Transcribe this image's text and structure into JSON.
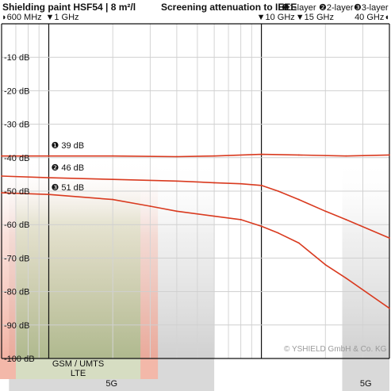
{
  "chart_data": {
    "type": "line",
    "title": "Shielding paint HSF54 | 8 m²/l",
    "subtitle": "Screening attenuation to IEEE",
    "legend": [
      {
        "marker": "❶",
        "label": "1-layer"
      },
      {
        "marker": "❷",
        "label": "2-layer"
      },
      {
        "marker": "❸",
        "label": "3-layer"
      }
    ],
    "x_tick_labels": [
      {
        "label": "◗600 MHz",
        "freq_ghz": 0.6
      },
      {
        "label": "▼1 GHz",
        "freq_ghz": 1
      },
      {
        "label": "▼10 GHz",
        "freq_ghz": 10
      },
      {
        "label": "▼15 GHz",
        "freq_ghz": 15
      },
      {
        "label": "40 GHz◖",
        "freq_ghz": 40
      }
    ],
    "x_scale": "log",
    "xlim_ghz": [
      0.6,
      40
    ],
    "ylim": [
      -100,
      0
    ],
    "y_ticks": [
      {
        "value": -10,
        "label": "-10 dB"
      },
      {
        "value": -20,
        "label": "-20 dB"
      },
      {
        "value": -30,
        "label": "-30 dB"
      },
      {
        "value": -40,
        "label": "-40 dB"
      },
      {
        "value": -50,
        "label": "-50 dB"
      },
      {
        "value": -60,
        "label": "-60 dB"
      },
      {
        "value": -70,
        "label": "-70 dB"
      },
      {
        "value": -80,
        "label": "-80 dB"
      },
      {
        "value": -90,
        "label": "-90 dB"
      },
      {
        "value": -100,
        "label": "-100 dB"
      }
    ],
    "series": [
      {
        "name": "1-layer",
        "color": "#d93a1f",
        "x_ghz": [
          0.6,
          1,
          2,
          4,
          6,
          10,
          15,
          25,
          40
        ],
        "y": [
          -39.5,
          -39.5,
          -39.5,
          -39.7,
          -39.5,
          -39.0,
          -39.2,
          -39.5,
          -39.2
        ]
      },
      {
        "name": "2-layer",
        "color": "#d93a1f",
        "x_ghz": [
          0.6,
          1,
          2,
          4,
          6,
          8,
          10,
          12,
          15,
          20,
          25,
          40
        ],
        "y": [
          -45.5,
          -46,
          -46.5,
          -47,
          -47.5,
          -47.8,
          -48.3,
          -50,
          -52.5,
          -56,
          -58.5,
          -64
        ]
      },
      {
        "name": "3-layer",
        "color": "#d93a1f",
        "x_ghz": [
          0.6,
          1,
          2,
          3,
          4,
          6,
          8,
          10,
          12,
          15,
          20,
          25,
          40
        ],
        "y": [
          -50.5,
          -51,
          -52.5,
          -54.5,
          -56,
          -57.5,
          -58.5,
          -60.5,
          -62.5,
          -65.5,
          -72,
          -76,
          -85
        ]
      }
    ],
    "value_labels": [
      {
        "marker": "❶",
        "text": "39 dB",
        "value": -39
      },
      {
        "marker": "❷",
        "text": "46 dB",
        "value": -46
      },
      {
        "marker": "❸",
        "text": "51 dB",
        "value": -51
      }
    ],
    "vertical_markers_ghz": [
      1,
      10
    ],
    "bands": [
      {
        "name": "GSM / UMTS",
        "sub": "LTE",
        "from_ghz": 0.7,
        "to_ghz": 2.7,
        "color": "#e8897a"
      },
      {
        "name": "5G",
        "from_ghz": 0.65,
        "to_ghz": 6.0,
        "color": "#a8a8a8"
      },
      {
        "name": "5G",
        "from_ghz": 24.0,
        "to_ghz": 40,
        "color": "#a8a8a8"
      }
    ],
    "copyright": "© YSHIELD GmbH & Co. KG",
    "grid": true
  }
}
